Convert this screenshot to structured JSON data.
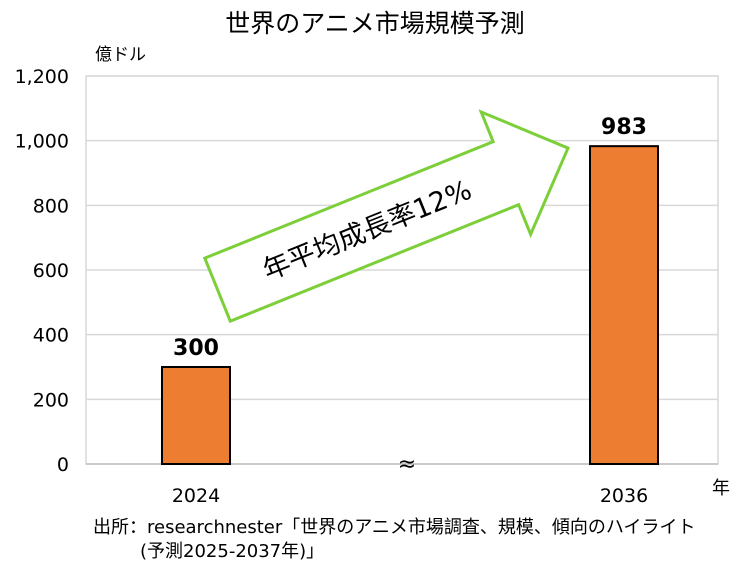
{
  "chart_data": {
    "type": "bar",
    "title": "世界のアニメ市場規模予測",
    "ylabel": "億ドル",
    "xlabel": "年",
    "categories": [
      "2024",
      "2036"
    ],
    "values": [
      300,
      983
    ],
    "data_labels": [
      "300",
      "983"
    ],
    "ylim": [
      0,
      1200
    ],
    "yticks": [
      0,
      200,
      400,
      600,
      800,
      1000,
      1200
    ],
    "ytick_labels": [
      "0",
      "200",
      "400",
      "600",
      "800",
      "1,000",
      "1,200"
    ],
    "grid": true,
    "axis_break": "≈",
    "annotation": "年平均成長率12%",
    "colors": {
      "bar": "#ED7D31",
      "bar_edge": "#000000",
      "arrow_edge": "#7DCF3A",
      "grid": "#D9D9D9"
    }
  },
  "source": {
    "line1": "出所：researchnester「世界のアニメ市場調査、規模、傾向のハイライト",
    "line2": "(予測2025-2037年)」"
  }
}
